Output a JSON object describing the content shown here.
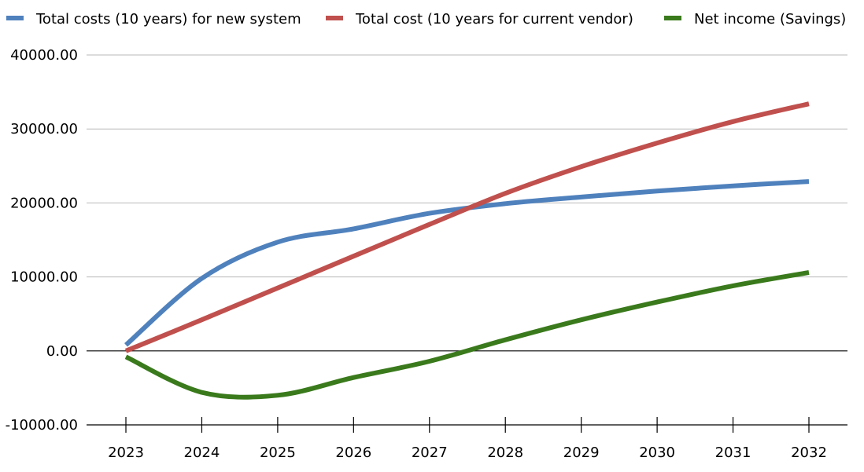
{
  "chart_data": {
    "type": "line",
    "title": "",
    "xlabel": "",
    "ylabel": "",
    "categories": [
      "2023",
      "2024",
      "2025",
      "2026",
      "2027",
      "2028",
      "2029",
      "2030",
      "2031",
      "2032"
    ],
    "y_ticks": [
      "40000.00",
      "30000.00",
      "20000.00",
      "10000.00",
      "0.00",
      "-10000.00"
    ],
    "y_tick_values": [
      40000,
      30000,
      20000,
      10000,
      0,
      -10000
    ],
    "ylim": [
      -10000,
      40000
    ],
    "grid": true,
    "legend_position": "top",
    "smooth": true,
    "series": [
      {
        "name": "Total costs (10 years) for new system",
        "color": "#4f81bd",
        "values": [
          800,
          9800,
          14700,
          16500,
          18600,
          19900,
          20800,
          21600,
          22300,
          22900
        ]
      },
      {
        "name": "Total cost (10 years for current vendor)",
        "color": "#c0504d",
        "values": [
          0,
          4200,
          8500,
          12800,
          17100,
          21300,
          24900,
          28100,
          31000,
          33400
        ]
      },
      {
        "name": "Net income (Savings)",
        "color": "#3a7a1c",
        "values": [
          -800,
          -5600,
          -6000,
          -3600,
          -1400,
          1500,
          4200,
          6600,
          8800,
          10600
        ]
      }
    ]
  }
}
